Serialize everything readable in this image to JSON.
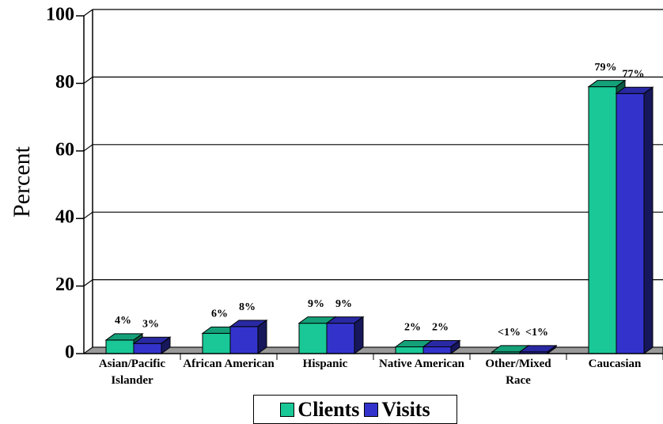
{
  "chart_data": {
    "type": "bar3d",
    "y_label": "Percent",
    "categories": [
      "Asian/Pacific Islander",
      "African American",
      "Hispanic",
      "Native American",
      "Other/Mixed Race",
      "Caucasian"
    ],
    "series": [
      {
        "name": "Clients",
        "color": "#19c896",
        "values": [
          4,
          6,
          9,
          2,
          0.5,
          79
        ],
        "value_labels": [
          "4%",
          "6%",
          "9%",
          "2%",
          "<1%",
          "79%"
        ]
      },
      {
        "name": "Visits",
        "color": "#3333cc",
        "values": [
          3,
          8,
          9,
          2,
          0.5,
          77
        ],
        "value_labels": [
          "3%",
          "8%",
          "9%",
          "2%",
          "<1%",
          "77%"
        ]
      }
    ],
    "ylim": [
      0,
      100
    ],
    "yticks": [
      0,
      20,
      40,
      60,
      80,
      100
    ],
    "grid": true,
    "legend": "bottom"
  }
}
